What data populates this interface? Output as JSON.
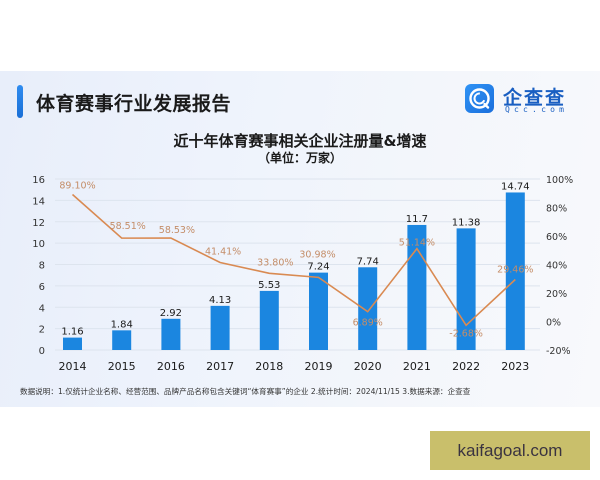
{
  "header": {
    "title": "体育赛事行业发展报告",
    "logo": {
      "cn": "企查查",
      "en": "Qcc.com",
      "icon": "qcc-logo-icon"
    }
  },
  "colors": {
    "bar": "#1b86e0",
    "line": "#d98a52",
    "line_label": "#c48d68",
    "accent": "#2f8cf0",
    "grid": "#dde4ee",
    "watermark_bg": "#c9bf6b"
  },
  "footnote": "数据说明：1.仅统计企业名称、经营范围、品牌产品名称包含关键词“体育赛事”的企业   2.统计时间：2024/11/15   3.数据来源：企查查",
  "watermark": "kaifagoal.com",
  "chart_data": {
    "type": "bar+line",
    "title": "近十年体育赛事相关企业注册量&增速",
    "subtitle": "（单位：万家）",
    "categories": [
      "2014",
      "2015",
      "2016",
      "2017",
      "2018",
      "2019",
      "2020",
      "2021",
      "2022",
      "2023"
    ],
    "series": [
      {
        "name": "注册量（万家）",
        "type": "bar",
        "axis": "left",
        "values": [
          1.16,
          1.84,
          2.92,
          4.13,
          5.53,
          7.24,
          7.74,
          11.7,
          11.38,
          14.74
        ],
        "labels": [
          "1.16",
          "1.84",
          "2.92",
          "4.13",
          "5.53",
          "7.24",
          "7.74",
          "11.7",
          "11.38",
          "14.74"
        ]
      },
      {
        "name": "增速",
        "type": "line",
        "axis": "right",
        "values": [
          89.1,
          58.51,
          58.53,
          41.41,
          33.8,
          30.98,
          6.89,
          51.14,
          -2.68,
          29.46
        ],
        "labels": [
          "89.10%",
          "58.51%",
          "58.53%",
          "41.41%",
          "33.80%",
          "30.98%",
          "6.89%",
          "51.14%",
          "-2.68%",
          "29.46%"
        ]
      }
    ],
    "y_left": {
      "ylim": [
        0,
        16
      ],
      "ticks": [
        "0",
        "2",
        "4",
        "6",
        "8",
        "10",
        "12",
        "14",
        "16"
      ]
    },
    "y_right": {
      "ylim": [
        -20,
        100
      ],
      "ticks": [
        "-20%",
        "0%",
        "20%",
        "40%",
        "60%",
        "80%",
        "100%"
      ]
    },
    "xlabel": "",
    "ylabel": "",
    "grid": true,
    "legend": "none"
  }
}
